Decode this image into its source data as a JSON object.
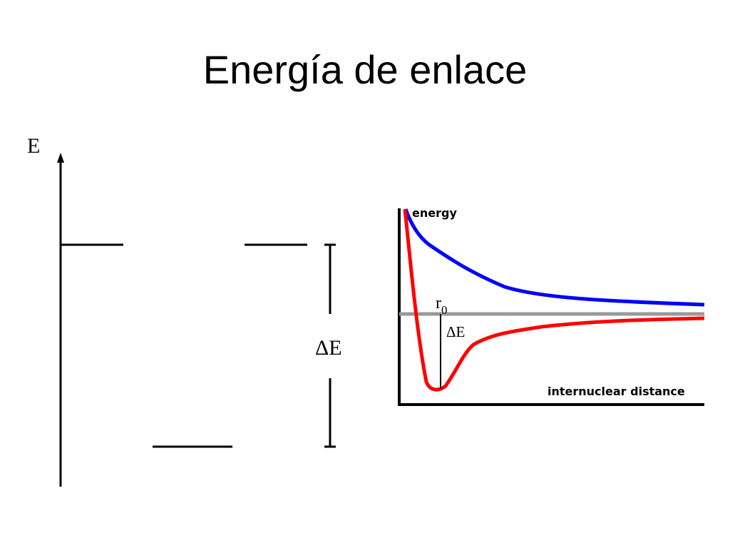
{
  "title": "Energía de enlace",
  "level_diagram": {
    "axis_label": "E",
    "delta_label": "ΔE"
  },
  "potential_curve": {
    "y_axis_label": "energy",
    "x_axis_label": "internuclear distance",
    "r0_label": "r",
    "r0_subscript": "0",
    "delta_label": "ΔE",
    "colors": {
      "repulsive_curve": "#0000ff",
      "bonding_curve": "#ff0000",
      "zero_line": "#999999",
      "axes": "#000000"
    }
  }
}
